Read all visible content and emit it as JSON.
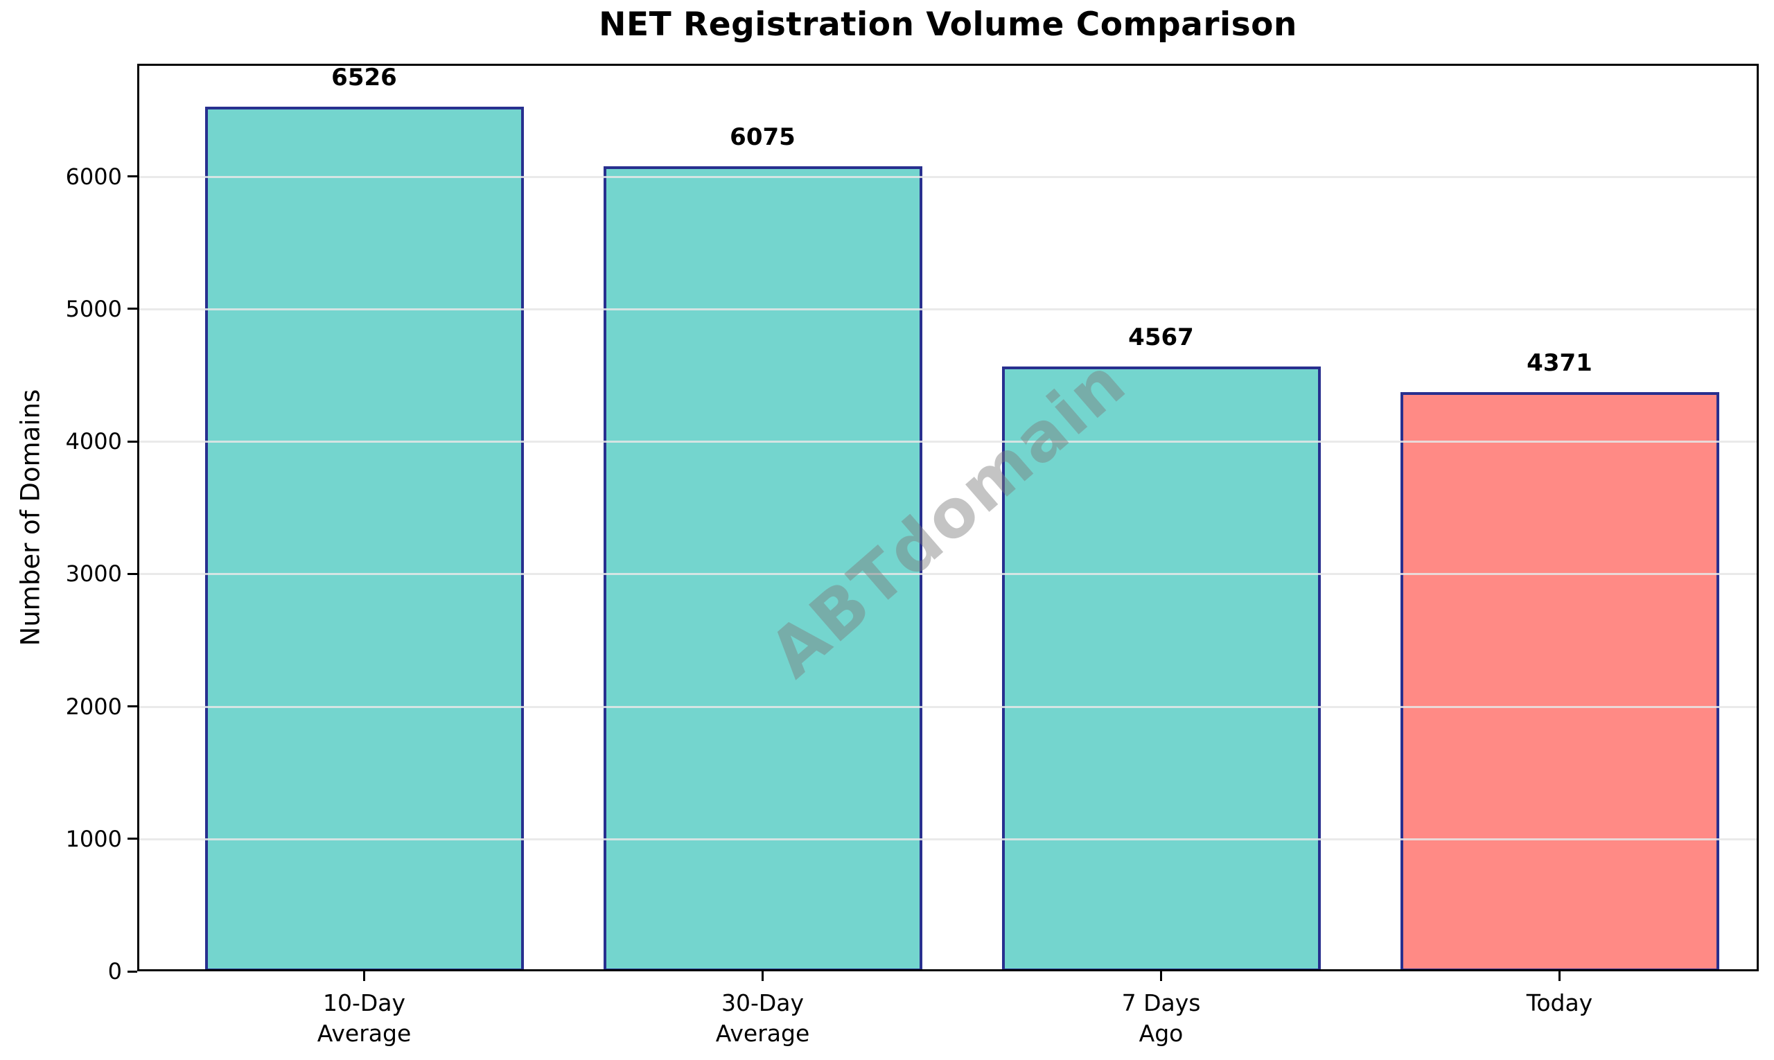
{
  "figure": {
    "title": "NET Registration Volume Comparison",
    "watermark": "ABTdomain"
  },
  "chart_data": {
    "type": "bar",
    "title": "NET Registration Volume Comparison",
    "xlabel": "",
    "ylabel": "Number of Domains",
    "categories": [
      "10-Day\nAverage",
      "30-Day\nAverage",
      "7 Days\nAgo",
      "Today"
    ],
    "values": [
      6526,
      6075,
      4567,
      4371
    ],
    "bar_value_labels": [
      "6526",
      "6075",
      "4567",
      "4371"
    ],
    "yticks": [
      0,
      1000,
      2000,
      3000,
      4000,
      5000,
      6000
    ],
    "ytick_labels": [
      "0",
      "1000",
      "2000",
      "3000",
      "4000",
      "5000",
      "6000"
    ],
    "ylim": [
      0,
      6850
    ],
    "grid": "horizontal-only",
    "grid_above_bars": true,
    "legend": "none",
    "watermark": "ABTdomain",
    "colors": {
      "bar_fill": [
        "#74D5CE",
        "#74D5CE",
        "#74D5CE",
        "#FF8A85"
      ],
      "bar_edge": "#28308F",
      "gridline": "rgba(230,230,230,0.85)",
      "watermark": "rgba(125,125,125,0.45)",
      "spine": "#000000",
      "text": "#000000",
      "background": "#FFFFFF"
    }
  }
}
